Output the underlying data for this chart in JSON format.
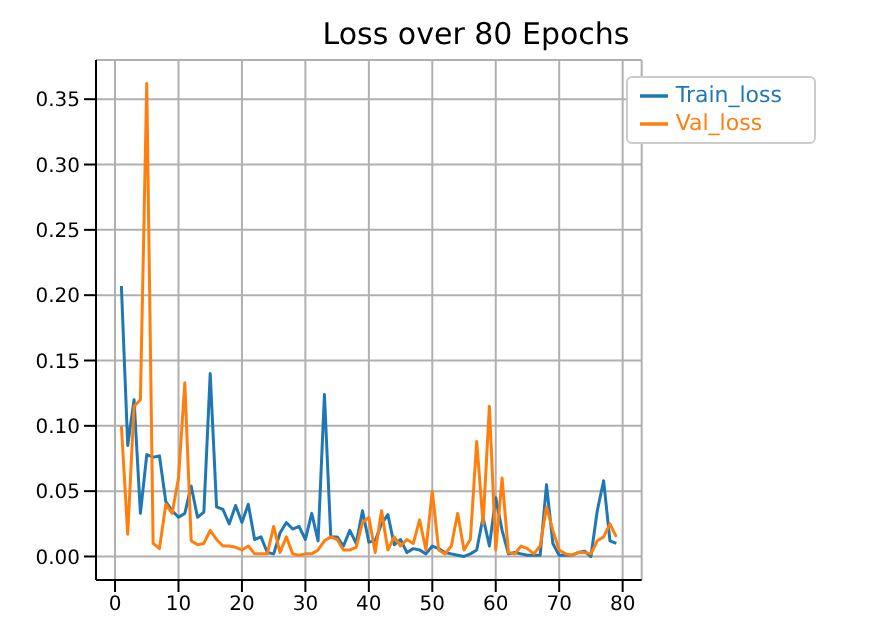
{
  "chart_data": {
    "type": "line",
    "title": "Loss over 80 Epochs",
    "x": [
      1,
      2,
      3,
      4,
      5,
      6,
      7,
      8,
      9,
      10,
      11,
      12,
      13,
      14,
      15,
      16,
      17,
      18,
      19,
      20,
      21,
      22,
      23,
      24,
      25,
      26,
      27,
      28,
      29,
      30,
      31,
      32,
      33,
      34,
      35,
      36,
      37,
      38,
      39,
      40,
      41,
      42,
      43,
      44,
      45,
      46,
      47,
      48,
      49,
      50,
      51,
      52,
      53,
      54,
      55,
      56,
      57,
      58,
      59,
      60,
      61,
      62,
      63,
      64,
      65,
      66,
      67,
      68,
      69,
      70,
      71,
      72,
      73,
      74,
      75,
      76,
      77,
      78,
      79
    ],
    "series": [
      {
        "name": "Train_loss",
        "color": "#1f77b4",
        "values": [
          0.207,
          0.085,
          0.12,
          0.033,
          0.078,
          0.076,
          0.077,
          0.042,
          0.035,
          0.03,
          0.033,
          0.054,
          0.03,
          0.034,
          0.14,
          0.038,
          0.036,
          0.025,
          0.039,
          0.026,
          0.04,
          0.013,
          0.015,
          0.003,
          0.002,
          0.018,
          0.026,
          0.021,
          0.023,
          0.013,
          0.033,
          0.012,
          0.124,
          0.015,
          0.015,
          0.008,
          0.02,
          0.01,
          0.035,
          0.011,
          0.012,
          0.025,
          0.032,
          0.009,
          0.013,
          0.003,
          0.006,
          0.005,
          0.002,
          0.008,
          0.006,
          0.003,
          0.002,
          0.001,
          0.0,
          0.002,
          0.005,
          0.03,
          0.008,
          0.045,
          0.02,
          0.002,
          0.003,
          0.002,
          0.001,
          0.001,
          0.001,
          0.055,
          0.01,
          0.001,
          0.001,
          0.001,
          0.003,
          0.004,
          0.0,
          0.035,
          0.058,
          0.012,
          0.01
        ]
      },
      {
        "name": "Val_loss",
        "color": "#ff7f0e",
        "values": [
          0.1,
          0.017,
          0.115,
          0.12,
          0.362,
          0.01,
          0.006,
          0.04,
          0.033,
          0.06,
          0.133,
          0.012,
          0.009,
          0.01,
          0.02,
          0.013,
          0.008,
          0.008,
          0.007,
          0.005,
          0.008,
          0.002,
          0.002,
          0.002,
          0.023,
          0.003,
          0.015,
          0.002,
          0.001,
          0.002,
          0.002,
          0.005,
          0.012,
          0.015,
          0.013,
          0.005,
          0.005,
          0.007,
          0.026,
          0.03,
          0.003,
          0.035,
          0.005,
          0.015,
          0.008,
          0.013,
          0.01,
          0.028,
          0.005,
          0.05,
          0.005,
          0.002,
          0.008,
          0.033,
          0.005,
          0.013,
          0.088,
          0.025,
          0.115,
          0.005,
          0.06,
          0.003,
          0.002,
          0.008,
          0.006,
          0.002,
          0.008,
          0.038,
          0.02,
          0.005,
          0.002,
          0.001,
          0.003,
          0.003,
          0.002,
          0.012,
          0.015,
          0.025,
          0.015
        ]
      }
    ],
    "xlim": [
      -3,
      83
    ],
    "xticks": [
      0,
      10,
      20,
      30,
      40,
      50,
      60,
      70,
      80
    ],
    "ylim": [
      -0.018,
      0.38
    ],
    "yticks": [
      {
        "value": 0,
        "label": "0.00"
      },
      {
        "value": 0.05,
        "label": "0.05"
      },
      {
        "value": 0.1,
        "label": "0.10"
      },
      {
        "value": 0.15,
        "label": "0.15"
      },
      {
        "value": 0.2,
        "label": "0.20"
      },
      {
        "value": 0.25,
        "label": "0.25"
      },
      {
        "value": 0.3,
        "label": "0.30"
      },
      {
        "value": 0.35,
        "label": "0.35"
      }
    ],
    "grid": true,
    "legend": "top right",
    "marker": "none",
    "line_style": "solid"
  }
}
